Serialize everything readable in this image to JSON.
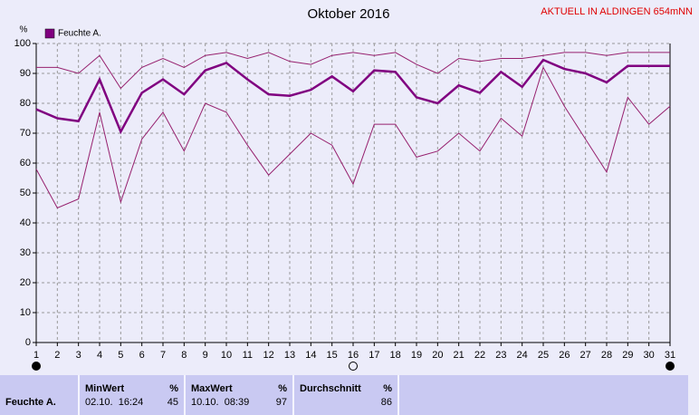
{
  "chart_data": {
    "type": "line",
    "title": "Oktober 2016",
    "annotation": "AKTUELL IN ALDINGEN 654mNN",
    "y_unit": "%",
    "categories": [
      "1",
      "2",
      "3",
      "4",
      "5",
      "6",
      "7",
      "8",
      "9",
      "10",
      "11",
      "12",
      "13",
      "14",
      "15",
      "16",
      "17",
      "18",
      "19",
      "20",
      "21",
      "22",
      "23",
      "24",
      "25",
      "26",
      "27",
      "28",
      "29",
      "30",
      "31"
    ],
    "series": [
      {
        "name": "Feuchte A.",
        "color": "#800080",
        "width": 2.5,
        "values": [
          78,
          75,
          74,
          88,
          70.5,
          83.5,
          88,
          83,
          91,
          93.5,
          88,
          83,
          82.5,
          84.5,
          89,
          84,
          91,
          90.5,
          82,
          80,
          86,
          83.5,
          90.5,
          85.5,
          94.5,
          91.5,
          90,
          87,
          92.5,
          92.5,
          92.5
        ]
      },
      {
        "color": "#96206e",
        "width": 1,
        "values": [
          92,
          92,
          90,
          96,
          85,
          92,
          95,
          92,
          96,
          97,
          95,
          97,
          94,
          93,
          96,
          97,
          96,
          97,
          93,
          90,
          95,
          94,
          95,
          95,
          96,
          97,
          97,
          96,
          97,
          97,
          97
        ]
      },
      {
        "color": "#96206e",
        "width": 1,
        "values": [
          58,
          45,
          48,
          77,
          47,
          68,
          77,
          64,
          80,
          77,
          66,
          56,
          63,
          70,
          66,
          53,
          73,
          73,
          62,
          64,
          70,
          64,
          75,
          69,
          92,
          79,
          68,
          57,
          82,
          73,
          79
        ]
      }
    ],
    "ylim": [
      0,
      100
    ],
    "yticks": [
      0,
      10,
      20,
      30,
      40,
      50,
      60,
      70,
      80,
      90,
      100
    ],
    "grid": true,
    "legend": "top-left"
  },
  "stats_table": {
    "row_label": "Feuchte A.",
    "columns": [
      {
        "header": "MinWert",
        "unit": "%",
        "time": "02.10.  16:24",
        "value": 45
      },
      {
        "header": "MaxWert",
        "unit": "%",
        "time": "10.10.  08:39",
        "value": 97
      },
      {
        "header": "Durchschnitt",
        "unit": "%",
        "value": 86
      }
    ]
  }
}
